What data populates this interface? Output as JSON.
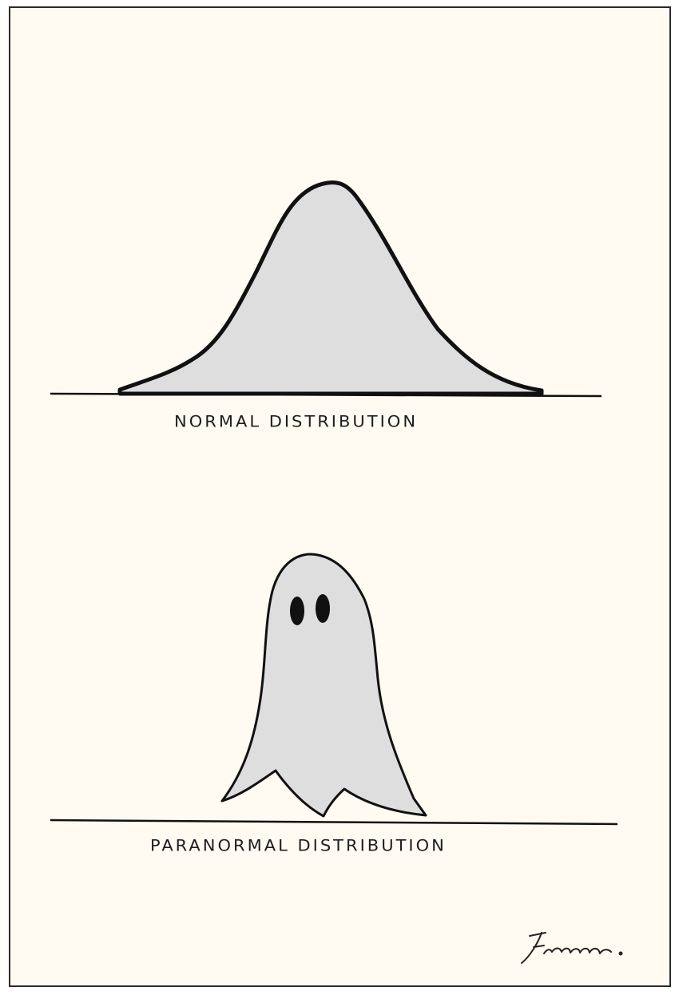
{
  "cartoon": {
    "panels": [
      {
        "caption": "NORMAL DISTRIBUTION",
        "subject": "bell-curve"
      },
      {
        "caption": "PARANORMAL DISTRIBUTION",
        "subject": "ghost"
      }
    ],
    "signature": "Freeman.",
    "colors": {
      "background": "#fffbf3",
      "fill": "#dedede",
      "ink": "#111111"
    }
  }
}
